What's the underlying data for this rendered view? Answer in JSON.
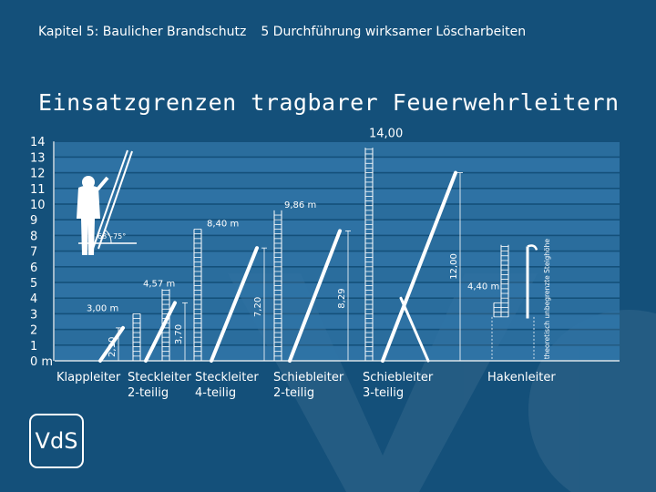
{
  "header": {
    "chapter": "Kapitel 5: Baulicher Brandschutz",
    "section": "5 Durchführung wirksamer Löscharbeiten"
  },
  "title": "Einsatzgrenzen tragbarer Feuerwehrleitern",
  "axis": {
    "unit": "m",
    "ticks": [
      0,
      1,
      2,
      3,
      4,
      5,
      6,
      7,
      8,
      9,
      10,
      11,
      12,
      13,
      14
    ]
  },
  "person": {
    "angle_label": "68°-75°"
  },
  "ladders": [
    {
      "id": "klappleiter",
      "name": [
        "Klappleiter"
      ],
      "height_label": "3,00 m",
      "height": 3.0,
      "dim_label": "2,10",
      "dim": 2.1
    },
    {
      "id": "steckleiter-2",
      "name": [
        "Steckleiter",
        "2-teilig"
      ],
      "height_label": "4,57 m",
      "height": 4.57,
      "dim_label": "3,70",
      "dim": 3.7
    },
    {
      "id": "steckleiter-4",
      "name": [
        "Steckleiter",
        "4-teilig"
      ],
      "height_label": "8,40 m",
      "height": 8.4,
      "dim_label": "7,20",
      "dim": 7.2
    },
    {
      "id": "schiebleiter-2",
      "name": [
        "Schiebleiter",
        "2-teilig"
      ],
      "height_label": "9,86 m",
      "height": 9.86,
      "dim_label": "8,29",
      "dim": 8.29
    },
    {
      "id": "schiebleiter-3",
      "name": [
        "Schiebleiter",
        "3-teilig"
      ],
      "height_label": "14,00",
      "height": 14.0,
      "dim_label": "12,00",
      "dim": 12.0
    },
    {
      "id": "hakenleiter",
      "name": [
        "Hakenleiter"
      ],
      "height_label": "4,40 m",
      "height": 4.4,
      "note": "theoretisch unbegrenzte Steighöhe"
    }
  ],
  "logo": {
    "text": "VdS"
  },
  "colors": {
    "background": "#14507a",
    "band": "#2f74a6",
    "foreground": "#ffffff"
  }
}
